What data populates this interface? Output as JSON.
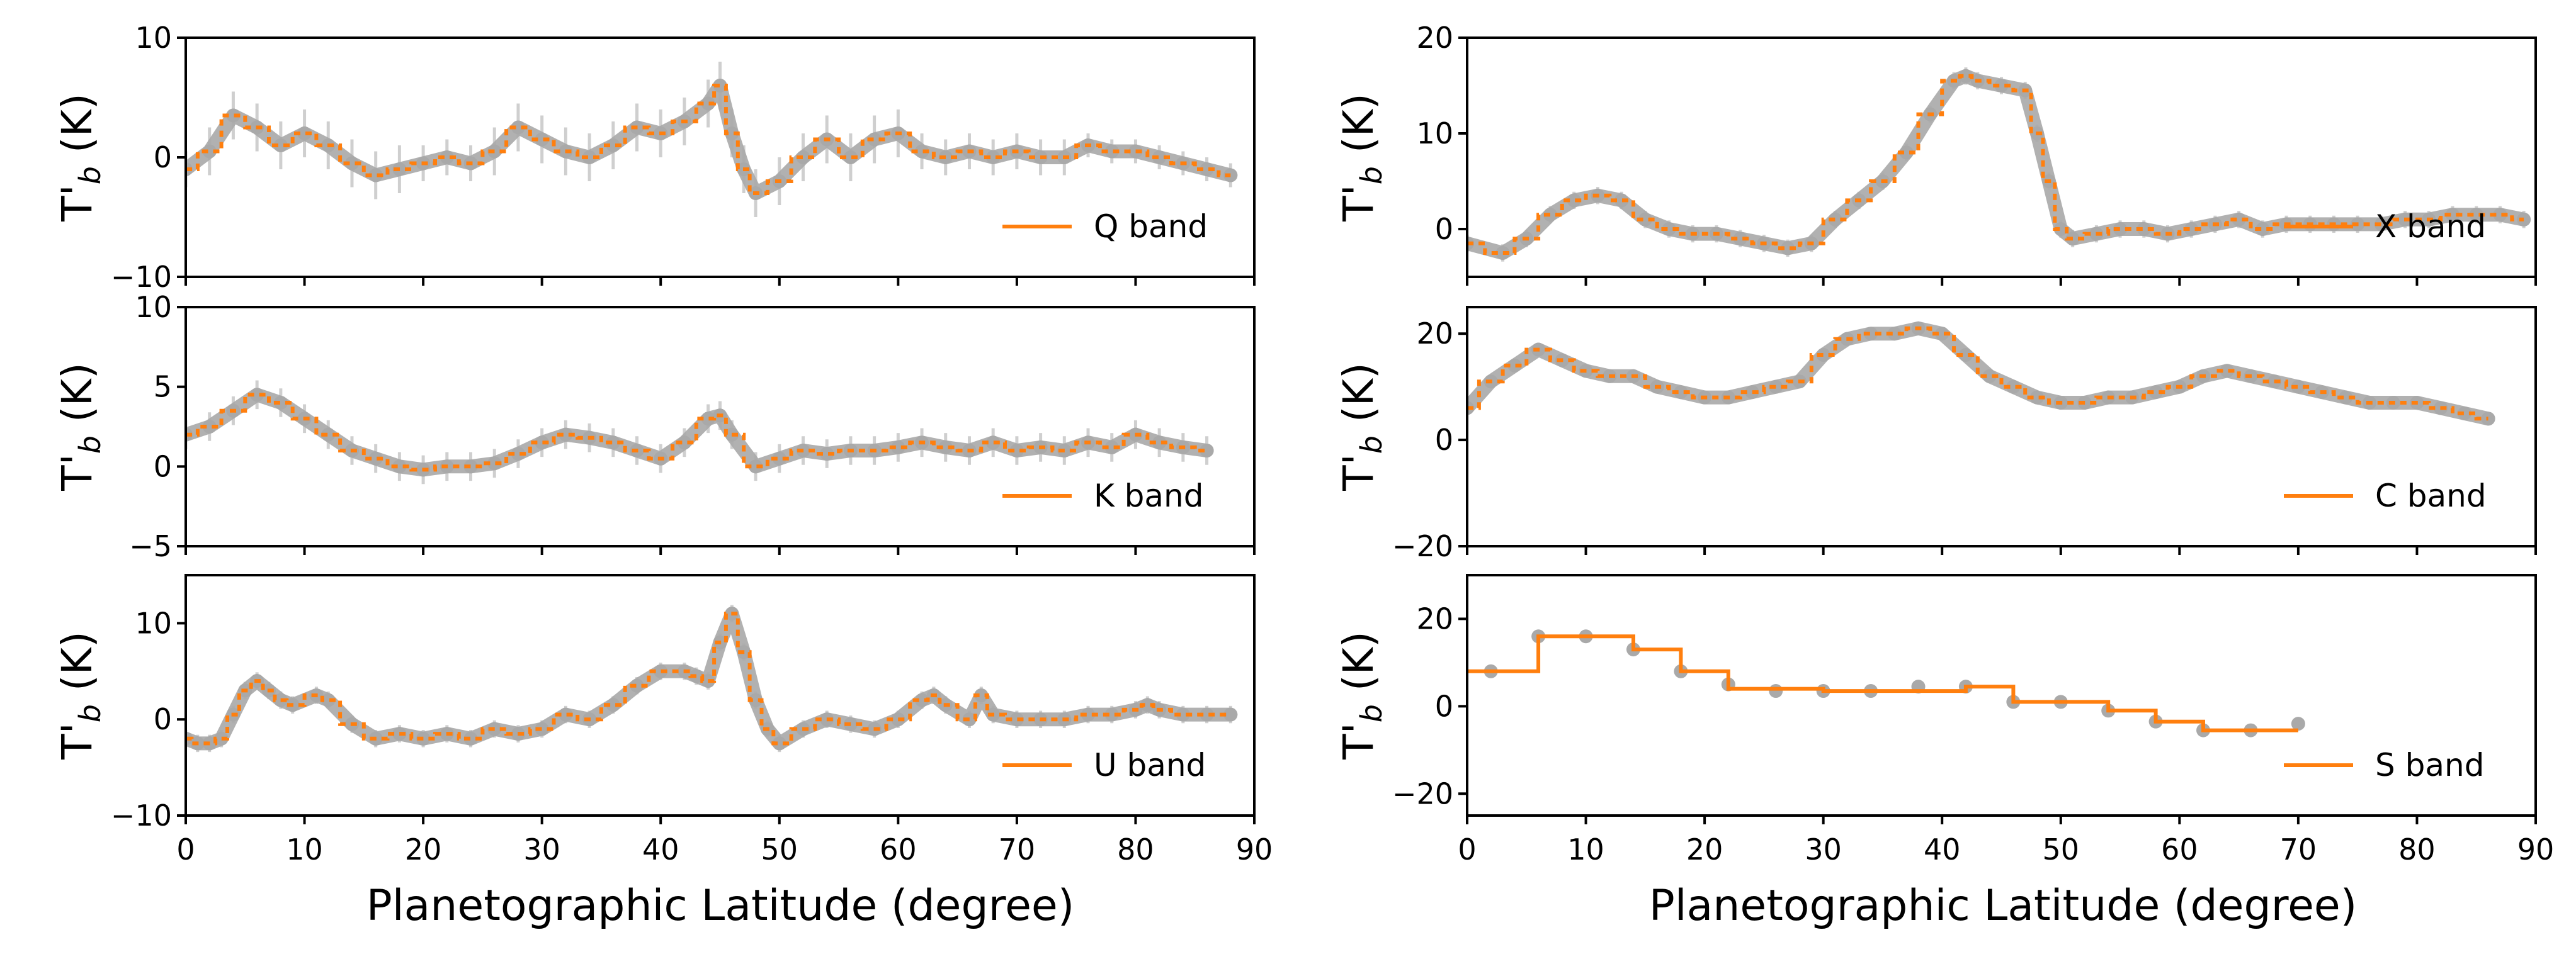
{
  "figure": {
    "xlabel_left": "Planetographic Latitude (degree)",
    "xlabel_right": "Planetographic Latitude (degree)",
    "x_ticks": [
      "0",
      "10",
      "20",
      "30",
      "40",
      "50",
      "60",
      "70",
      "80",
      "90"
    ]
  },
  "colors": {
    "step_line": "#ff7f0e",
    "measurement": "#a9a9a9",
    "errorbar": "#cfcfcf"
  },
  "chart_data": [
    {
      "type": "line",
      "panel": "top-left",
      "ylabel": "T'b (K)",
      "xlim": [
        0,
        90
      ],
      "ylim": [
        -10,
        10
      ],
      "y_ticks": [
        "10",
        "0",
        "−10"
      ],
      "legend": "Q band",
      "legend_position": "lower-right",
      "series": [
        {
          "name": "Q band",
          "x": [
            0,
            2,
            4,
            6,
            8,
            10,
            12,
            14,
            16,
            18,
            20,
            22,
            24,
            26,
            28,
            30,
            32,
            34,
            36,
            38,
            40,
            42,
            44,
            45,
            46,
            47,
            48,
            50,
            52,
            54,
            56,
            58,
            60,
            62,
            64,
            66,
            68,
            70,
            72,
            74,
            76,
            78,
            80,
            82,
            84,
            86,
            88
          ],
          "y": [
            -1,
            0.5,
            3.5,
            2.5,
            1,
            2,
            1,
            -0.5,
            -1.5,
            -1,
            -0.5,
            0,
            -0.5,
            0.5,
            2.5,
            1.5,
            0.5,
            0,
            1,
            2.5,
            2,
            3,
            4.5,
            6,
            2,
            -1,
            -3,
            -2,
            0,
            1.5,
            0,
            1.5,
            2,
            0.5,
            0,
            0.5,
            0,
            0.5,
            0,
            0,
            1,
            0.5,
            0.5,
            0,
            -0.5,
            -1,
            -1.5
          ],
          "err": [
            1.5,
            2,
            2,
            2,
            2,
            2,
            2,
            2,
            2,
            2,
            1.5,
            1.5,
            1.5,
            2,
            2,
            2,
            2,
            2,
            2,
            2,
            2,
            2,
            2,
            2,
            2,
            2,
            2,
            2,
            2,
            2,
            2,
            2,
            2,
            1.5,
            1.5,
            1.5,
            1.5,
            1.5,
            1.5,
            1.5,
            1,
            1,
            1,
            1,
            1,
            1,
            1
          ]
        }
      ]
    },
    {
      "type": "line",
      "panel": "top-right",
      "ylabel": "T'b (K)",
      "xlim": [
        0,
        90
      ],
      "ylim": [
        -5,
        20
      ],
      "y_ticks": [
        "20",
        "10",
        "0"
      ],
      "legend": "X band",
      "legend_position": "lower-right",
      "series": [
        {
          "name": "X band",
          "x": [
            0,
            3,
            5,
            7,
            9,
            11,
            13,
            15,
            17,
            19,
            21,
            23,
            25,
            27,
            29,
            31,
            33,
            35,
            37,
            39,
            41,
            42,
            43,
            45,
            47,
            48,
            49,
            50,
            51,
            53,
            55,
            57,
            59,
            61,
            63,
            65,
            67,
            69,
            71,
            73,
            75,
            77,
            79,
            81,
            83,
            85,
            87,
            89
          ],
          "y": [
            -1.5,
            -2.5,
            -1,
            1.5,
            3,
            3.5,
            3,
            1,
            0,
            -0.5,
            -0.5,
            -1,
            -1.5,
            -2,
            -1.5,
            1,
            3,
            5,
            8,
            12,
            15.5,
            16,
            15.5,
            15,
            14.5,
            10,
            5,
            0,
            -1,
            -0.5,
            0,
            0,
            -0.5,
            0,
            0.5,
            1,
            0,
            0.5,
            0.5,
            0.5,
            0.5,
            0.5,
            1,
            1,
            1.5,
            1.5,
            1.5,
            1
          ]
        }
      ]
    },
    {
      "type": "line",
      "panel": "middle-left",
      "ylabel": "T'b (K)",
      "xlim": [
        0,
        90
      ],
      "ylim": [
        -5,
        10
      ],
      "y_ticks": [
        "10",
        "5",
        "0",
        "−5"
      ],
      "legend": "K band",
      "legend_position": "lower-right",
      "series": [
        {
          "name": "K band",
          "x": [
            0,
            2,
            4,
            6,
            8,
            10,
            12,
            14,
            16,
            18,
            20,
            22,
            24,
            26,
            28,
            30,
            32,
            34,
            36,
            38,
            40,
            42,
            44,
            45,
            46,
            48,
            50,
            52,
            54,
            56,
            58,
            60,
            62,
            64,
            66,
            68,
            70,
            72,
            74,
            76,
            78,
            80,
            82,
            84,
            86
          ],
          "y": [
            2,
            2.5,
            3.5,
            4.5,
            4,
            3,
            2,
            1,
            0.5,
            0,
            -0.2,
            0,
            0,
            0.2,
            0.8,
            1.5,
            2,
            1.8,
            1.5,
            1,
            0.5,
            1.5,
            3,
            3.2,
            2,
            0,
            0.5,
            1,
            0.8,
            1,
            1,
            1.2,
            1.5,
            1.2,
            1,
            1.5,
            1,
            1.2,
            1,
            1.5,
            1.2,
            2,
            1.5,
            1.2,
            1
          ]
        }
      ]
    },
    {
      "type": "line",
      "panel": "middle-right",
      "ylabel": "T'b (K)",
      "xlim": [
        0,
        90
      ],
      "ylim": [
        -20,
        25
      ],
      "y_ticks": [
        "20",
        "0",
        "−20"
      ],
      "legend": "C band",
      "legend_position": "lower-right",
      "series": [
        {
          "name": "C band",
          "x": [
            0,
            2,
            4,
            6,
            8,
            10,
            12,
            14,
            16,
            18,
            20,
            22,
            24,
            26,
            28,
            30,
            32,
            34,
            36,
            38,
            40,
            42,
            44,
            46,
            48,
            50,
            52,
            54,
            56,
            58,
            60,
            62,
            64,
            66,
            68,
            70,
            72,
            74,
            76,
            78,
            80,
            82,
            84,
            86
          ],
          "y": [
            6,
            11,
            14,
            17,
            15,
            13,
            12,
            12,
            10,
            9,
            8,
            8,
            9,
            10,
            11,
            16,
            19,
            20,
            20,
            21,
            20,
            16,
            12,
            10,
            8,
            7,
            7,
            8,
            8,
            9,
            10,
            12,
            13,
            12,
            11,
            10,
            9,
            8,
            7,
            7,
            7,
            6,
            5,
            4
          ]
        }
      ]
    },
    {
      "type": "line",
      "panel": "bottom-left",
      "ylabel": "T'b (K)",
      "xlim": [
        0,
        90
      ],
      "ylim": [
        -10,
        15
      ],
      "y_ticks": [
        "10",
        "0",
        "−10"
      ],
      "legend": "U band",
      "legend_position": "lower-right",
      "series": [
        {
          "name": "U band",
          "x": [
            0,
            1,
            2,
            3,
            4,
            5,
            6,
            7,
            8,
            9,
            11,
            12,
            14,
            16,
            18,
            20,
            22,
            24,
            26,
            28,
            30,
            32,
            34,
            36,
            38,
            40,
            42,
            43,
            44,
            45,
            46,
            47,
            48,
            49,
            50,
            52,
            54,
            56,
            58,
            60,
            62,
            63,
            64,
            66,
            67,
            68,
            70,
            72,
            74,
            76,
            78,
            80,
            81,
            82,
            84,
            86,
            88
          ],
          "y": [
            -2,
            -2.5,
            -2.5,
            -2,
            0.5,
            3,
            4,
            3,
            2,
            1.5,
            2.5,
            2,
            -0.5,
            -2,
            -1.5,
            -2,
            -1.5,
            -2,
            -1,
            -1.5,
            -1,
            0.5,
            0,
            1.5,
            3.5,
            5,
            5,
            4.5,
            4,
            8,
            11,
            7,
            2,
            -1,
            -2.5,
            -1,
            0,
            -0.5,
            -1,
            0,
            2,
            2.5,
            1.5,
            0,
            2.5,
            0.5,
            0,
            0,
            0,
            0.5,
            0.5,
            1,
            1.5,
            1,
            0.5,
            0.5,
            0.5
          ]
        }
      ]
    },
    {
      "type": "line",
      "panel": "bottom-right",
      "ylabel": "T'b (K)",
      "xlim": [
        0,
        90
      ],
      "ylim": [
        -25,
        30
      ],
      "y_ticks": [
        "20",
        "0",
        "−20"
      ],
      "legend": "S band",
      "legend_position": "lower-right",
      "step_edges": [
        0,
        6,
        14,
        18,
        22,
        30,
        42,
        46,
        54,
        58,
        62,
        70
      ],
      "step_values": [
        8,
        16,
        13,
        8,
        4,
        3.5,
        4.5,
        1,
        -1,
        -3.5,
        -5.5
      ],
      "series": [
        {
          "name": "S band",
          "x": [
            2,
            6,
            10,
            14,
            18,
            22,
            26,
            30,
            34,
            38,
            42,
            46,
            50,
            54,
            58,
            62,
            66,
            70
          ],
          "y": [
            8,
            16,
            16,
            13,
            8,
            5,
            3.5,
            3.5,
            3.5,
            4.5,
            4.5,
            1,
            1,
            -1,
            -3.5,
            -5.5,
            -5.5,
            -4
          ]
        }
      ]
    }
  ]
}
